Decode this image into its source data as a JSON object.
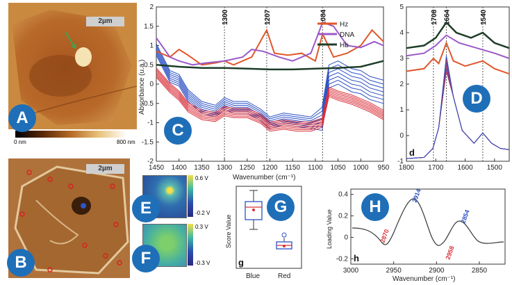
{
  "badges": {
    "A": "A",
    "B": "B",
    "C": "C",
    "D": "D",
    "E": "E",
    "F": "F",
    "G": "G",
    "H": "H"
  },
  "panel_a": {
    "scale": "2µm",
    "cbar_min": "0 nm",
    "cbar_max": "800 nm"
  },
  "panel_b": {
    "scale": "2µm"
  },
  "panel_c": {
    "ylabel": "Absorbance (u.a.)",
    "xlabel": "Wavenumber (cm⁻¹)",
    "yticks": [
      "2",
      "1.5",
      "1",
      "0.5",
      "0",
      "-0.5",
      "-1",
      "-1.5",
      "-2"
    ],
    "xticks": [
      "1450",
      "1400",
      "1350",
      "1300",
      "1250",
      "1200",
      "1150",
      "1100",
      "1050",
      "1000",
      "950"
    ],
    "peaks": [
      "1084",
      "1207",
      "1300"
    ],
    "legend": [
      {
        "name": "Hz",
        "color": "#e0562a"
      },
      {
        "name": "DNA",
        "color": "#9b59c9"
      },
      {
        "name": "Hb",
        "color": "#1e3d28"
      }
    ]
  },
  "panel_d": {
    "yticks": [
      "5",
      "4",
      "3",
      "2",
      "1",
      "0",
      "-1"
    ],
    "xticks": [
      "1800",
      "1700",
      "1600",
      "1500"
    ],
    "peaks": [
      "1708",
      "1664",
      "1540"
    ],
    "label": "d"
  },
  "panel_e": {
    "max": "0.6 V",
    "min": "-0.2 V"
  },
  "panel_f": {
    "max": "0.3 V",
    "min": "-0.3 V"
  },
  "panel_g": {
    "ylabel": "Score Value",
    "categories": [
      "Blue",
      "Red"
    ],
    "label": "g"
  },
  "panel_h": {
    "ylabel": "Loading Value",
    "xlabel": "Wavenumber (cm⁻¹)",
    "yticks": [
      "0.4",
      "0.2",
      "0",
      "-0.2"
    ],
    "xticks": [
      "3000",
      "2950",
      "2900",
      "2850"
    ],
    "peaks_red": [
      "2870",
      "2958"
    ],
    "peaks_blue": [
      "2914",
      "2854"
    ],
    "label": "h"
  },
  "chart_data": [
    {
      "type": "line",
      "xlim": [
        1450,
        950
      ],
      "ylim": [
        -2,
        2
      ],
      "series": [
        {
          "name": "Hz"
        },
        {
          "name": "DNA"
        },
        {
          "name": "Hb"
        }
      ]
    },
    {
      "type": "line",
      "xlim": [
        1800,
        1450
      ],
      "ylim": [
        -1,
        5
      ]
    },
    {
      "type": "box",
      "categories": [
        "Blue",
        "Red"
      ]
    },
    {
      "type": "line",
      "xlim": [
        3000,
        2820
      ],
      "ylim": [
        -0.25,
        0.45
      ]
    }
  ],
  "colors": {
    "badge": "#1f6fb8",
    "blue": "#2b4fc4",
    "red": "#d9303a",
    "hz": "#e0562a",
    "dna": "#9b59c9",
    "hb": "#1e3d28"
  }
}
